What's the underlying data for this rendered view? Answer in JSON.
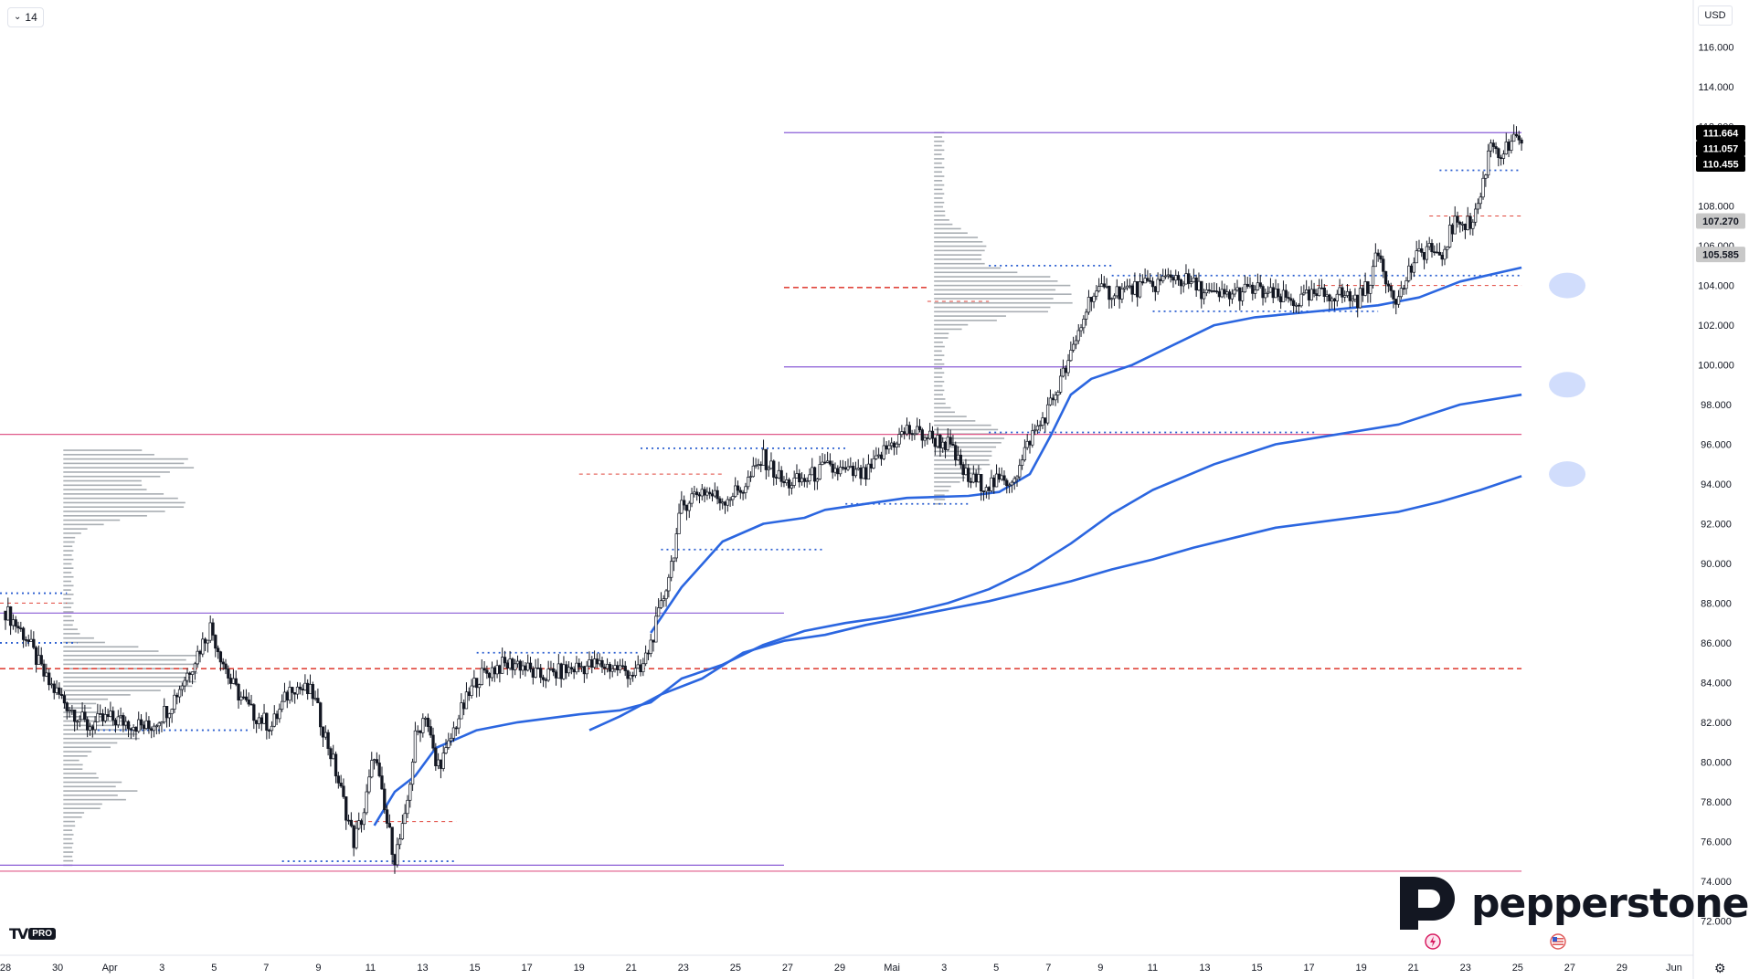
{
  "toolbar": {
    "interval_label": "14",
    "currency": "USD"
  },
  "branding": {
    "broker": "pepperstone",
    "platform_mark": "TV",
    "platform_badge": "PRO"
  },
  "colors": {
    "vwap": "#2b66e0",
    "hvn_line": "#e05a8a",
    "range_line": "#8a5cd6",
    "poc": "#e0463c",
    "value_area": "#2c5fd0",
    "profile": "#9aa0a6",
    "candle": "#131722",
    "price_tag": "#000000",
    "secondary_tag": "#c8c8c8"
  },
  "chart_data": {
    "type": "candlestick",
    "y_axis": {
      "min": 71,
      "max": 117,
      "ticks": [
        "116.000",
        "114.000",
        "112.000",
        "110.000",
        "108.000",
        "106.000",
        "104.000",
        "102.000",
        "100.000",
        "98.000",
        "96.000",
        "94.000",
        "92.000",
        "90.000",
        "88.000",
        "86.000",
        "84.000",
        "82.000",
        "80.000",
        "78.000",
        "76.000",
        "74.000",
        "72.000"
      ]
    },
    "x_axis": {
      "ticks": [
        "28",
        "30",
        "Apr",
        "3",
        "5",
        "7",
        "9",
        "11",
        "13",
        "15",
        "17",
        "19",
        "21",
        "23",
        "25",
        "27",
        "29",
        "Mai",
        "3",
        "5",
        "7",
        "9",
        "11",
        "13",
        "15",
        "17",
        "19",
        "21",
        "23",
        "25",
        "27",
        "29",
        "Jun"
      ]
    },
    "price_labels": [
      {
        "value": 111.664,
        "text": "111.664",
        "style": "dark"
      },
      {
        "value": 111.057,
        "text": "111.057",
        "style": "dark"
      },
      {
        "value": 110.455,
        "text": "110.455",
        "style": "dark"
      },
      {
        "value": 107.27,
        "text": "107.270",
        "style": "light"
      },
      {
        "value": 105.585,
        "text": "105.585",
        "style": "light"
      }
    ],
    "price_path": [
      [
        0,
        87.6
      ],
      [
        2,
        86.3
      ],
      [
        4,
        84.1
      ],
      [
        6,
        82.9
      ],
      [
        8,
        81.8
      ],
      [
        10,
        82.2
      ],
      [
        12,
        82.0
      ],
      [
        14,
        81.7
      ],
      [
        16,
        82.8
      ],
      [
        18,
        84.7
      ],
      [
        20,
        86.8
      ],
      [
        22,
        84.0
      ],
      [
        24,
        82.5
      ],
      [
        26,
        81.8
      ],
      [
        28,
        83.9
      ],
      [
        30,
        83.4
      ],
      [
        32,
        80.0
      ],
      [
        34,
        76.0
      ],
      [
        35,
        77.5
      ],
      [
        36,
        80.5
      ],
      [
        37,
        77.5
      ],
      [
        38,
        75.2
      ],
      [
        39,
        77.0
      ],
      [
        40,
        81.2
      ],
      [
        41,
        82.5
      ],
      [
        42,
        79.8
      ],
      [
        43,
        80.4
      ],
      [
        44,
        82.0
      ],
      [
        46,
        84.2
      ],
      [
        48,
        84.8
      ],
      [
        50,
        85.0
      ],
      [
        52,
        84.3
      ],
      [
        54,
        84.5
      ],
      [
        56,
        84.8
      ],
      [
        58,
        84.9
      ],
      [
        60,
        84.7
      ],
      [
        61,
        84.5
      ],
      [
        62,
        84.5
      ],
      [
        63,
        86.0
      ],
      [
        64,
        87.8
      ],
      [
        65,
        90.0
      ],
      [
        66,
        92.8
      ],
      [
        67,
        93.4
      ],
      [
        68,
        93.7
      ],
      [
        70,
        93.2
      ],
      [
        72,
        93.8
      ],
      [
        74,
        95.3
      ],
      [
        76,
        94.0
      ],
      [
        78,
        94.2
      ],
      [
        80,
        94.8
      ],
      [
        82,
        94.6
      ],
      [
        84,
        94.4
      ],
      [
        86,
        95.8
      ],
      [
        88,
        96.7
      ],
      [
        90,
        96.4
      ],
      [
        92,
        96.0
      ],
      [
        94,
        94.2
      ],
      [
        96,
        94.0
      ],
      [
        98,
        94.2
      ],
      [
        99,
        94.8
      ],
      [
        100,
        96.3
      ],
      [
        101,
        97.0
      ],
      [
        102,
        98.0
      ],
      [
        104,
        100.4
      ],
      [
        106,
        103.6
      ],
      [
        108,
        103.7
      ],
      [
        110,
        103.8
      ],
      [
        112,
        104.0
      ],
      [
        114,
        104.5
      ],
      [
        116,
        104.0
      ],
      [
        118,
        103.4
      ],
      [
        120,
        103.6
      ],
      [
        122,
        103.8
      ],
      [
        124,
        103.4
      ],
      [
        126,
        103.2
      ],
      [
        128,
        103.5
      ],
      [
        130,
        103.6
      ],
      [
        132,
        103.3
      ],
      [
        133,
        104.0
      ],
      [
        134,
        105.6
      ],
      [
        135,
        104.1
      ],
      [
        136,
        103.3
      ],
      [
        137,
        104.7
      ],
      [
        138,
        105.5
      ],
      [
        139,
        106.0
      ],
      [
        140,
        105.1
      ],
      [
        141,
        106.7
      ],
      [
        142,
        107.4
      ],
      [
        143,
        107.0
      ],
      [
        144,
        108.5
      ],
      [
        145,
        111.3
      ],
      [
        146,
        110.6
      ],
      [
        147,
        111.1
      ],
      [
        148,
        111.4
      ]
    ],
    "vwap_lines": [
      {
        "name": "",
        "points": [
          [
            63,
            86.5
          ],
          [
            66,
            88.8
          ],
          [
            70,
            91.1
          ],
          [
            74,
            92.0
          ],
          [
            78,
            92.3
          ],
          [
            80,
            92.7
          ],
          [
            84,
            93.0
          ],
          [
            88,
            93.3
          ],
          [
            94,
            93.4
          ],
          [
            97,
            93.6
          ],
          [
            100,
            94.5
          ],
          [
            102,
            96.4
          ],
          [
            104,
            98.5
          ],
          [
            106,
            99.3
          ],
          [
            110,
            100.0
          ],
          [
            114,
            101.0
          ],
          [
            118,
            102.0
          ],
          [
            122,
            102.4
          ],
          [
            126,
            102.6
          ],
          [
            130,
            102.8
          ],
          [
            134,
            103.0
          ],
          [
            138,
            103.4
          ],
          [
            142,
            104.2
          ],
          [
            148,
            104.9
          ]
        ]
      },
      {
        "name": "",
        "points": [
          [
            36,
            76.8
          ],
          [
            38,
            78.5
          ],
          [
            40,
            79.3
          ],
          [
            42,
            80.7
          ],
          [
            46,
            81.6
          ],
          [
            50,
            82.0
          ],
          [
            56,
            82.4
          ],
          [
            60,
            82.6
          ],
          [
            63,
            83.0
          ],
          [
            66,
            84.2
          ],
          [
            70,
            84.9
          ],
          [
            74,
            85.9
          ],
          [
            78,
            86.6
          ],
          [
            82,
            87.0
          ],
          [
            86,
            87.3
          ],
          [
            88,
            87.5
          ],
          [
            92,
            88.0
          ],
          [
            96,
            88.7
          ],
          [
            100,
            89.7
          ],
          [
            104,
            91.0
          ],
          [
            108,
            92.5
          ],
          [
            112,
            93.7
          ],
          [
            118,
            95.0
          ],
          [
            124,
            96.0
          ],
          [
            130,
            96.5
          ],
          [
            136,
            97.0
          ],
          [
            142,
            98.0
          ],
          [
            148,
            98.5
          ]
        ]
      },
      {
        "name": "",
        "points": [
          [
            57,
            81.6
          ],
          [
            60,
            82.3
          ],
          [
            64,
            83.4
          ],
          [
            68,
            84.2
          ],
          [
            72,
            85.5
          ],
          [
            76,
            86.1
          ],
          [
            80,
            86.4
          ],
          [
            84,
            86.9
          ],
          [
            88,
            87.3
          ],
          [
            92,
            87.7
          ],
          [
            96,
            88.1
          ],
          [
            100,
            88.6
          ],
          [
            104,
            89.1
          ],
          [
            108,
            89.7
          ],
          [
            112,
            90.2
          ],
          [
            116,
            90.8
          ],
          [
            120,
            91.3
          ],
          [
            124,
            91.8
          ],
          [
            130,
            92.2
          ],
          [
            136,
            92.6
          ],
          [
            140,
            93.1
          ],
          [
            144,
            93.7
          ],
          [
            148,
            94.4
          ]
        ]
      }
    ],
    "horizontal_lines": [
      {
        "kind": "hvn",
        "value": 96.5,
        "x_from": 0,
        "x_to": 148
      },
      {
        "kind": "hvn",
        "value": 74.5,
        "x_from": 0,
        "x_to": 148
      },
      {
        "kind": "range",
        "value": 111.7,
        "x_from": 76,
        "x_to": 148
      },
      {
        "kind": "range",
        "value": 99.9,
        "x_from": 76,
        "x_to": 148
      },
      {
        "kind": "range",
        "value": 87.5,
        "x_from": 0,
        "x_to": 76
      },
      {
        "kind": "range",
        "value": 74.8,
        "x_from": 0,
        "x_to": 76
      },
      {
        "kind": "poc",
        "value": 84.7,
        "x_from": 0,
        "x_to": 148
      },
      {
        "kind": "poc",
        "value": 103.9,
        "x_from": 76,
        "x_to": 90
      },
      {
        "kind": "poc_dashed",
        "value": 103.2,
        "x_from": 90,
        "x_to": 96
      },
      {
        "kind": "poc_dashed",
        "value": 104.0,
        "x_from": 128,
        "x_to": 148
      },
      {
        "kind": "poc_dashed",
        "value": 107.5,
        "x_from": 139,
        "x_to": 148
      },
      {
        "kind": "poc_dashed",
        "value": 94.5,
        "x_from": 56,
        "x_to": 70
      },
      {
        "kind": "poc_dashed",
        "value": 77.0,
        "x_from": 34,
        "x_to": 44
      },
      {
        "kind": "poc_dashed",
        "value": 88.0,
        "x_from": 0,
        "x_to": 6
      },
      {
        "kind": "va",
        "value": 88.5,
        "x_from": 0,
        "x_to": 6
      },
      {
        "kind": "va",
        "value": 86.0,
        "x_from": 0,
        "x_to": 7
      },
      {
        "kind": "va",
        "value": 81.6,
        "x_from": 9,
        "x_to": 24
      },
      {
        "kind": "va",
        "value": 75.0,
        "x_from": 27,
        "x_to": 44
      },
      {
        "kind": "va",
        "value": 85.5,
        "x_from": 46,
        "x_to": 62
      },
      {
        "kind": "va",
        "value": 95.8,
        "x_from": 62,
        "x_to": 82
      },
      {
        "kind": "va",
        "value": 93.0,
        "x_from": 82,
        "x_to": 94
      },
      {
        "kind": "va",
        "value": 96.6,
        "x_from": 96,
        "x_to": 128
      },
      {
        "kind": "va",
        "value": 105.0,
        "x_from": 96,
        "x_to": 108
      },
      {
        "kind": "va",
        "value": 104.5,
        "x_from": 108,
        "x_to": 148
      },
      {
        "kind": "va",
        "value": 102.7,
        "x_from": 112,
        "x_to": 134
      },
      {
        "kind": "va",
        "value": 109.8,
        "x_from": 140,
        "x_to": 148
      },
      {
        "kind": "va",
        "value": 90.7,
        "x_from": 64,
        "x_to": 80
      }
    ],
    "volume_profiles": [
      {
        "anchor_x": 11,
        "y_from": 74.8,
        "y_to": 95.9,
        "peaks": [
          [
            95.0,
            1.0
          ],
          [
            93.0,
            0.95
          ],
          [
            85.0,
            1.05
          ],
          [
            84.2,
            1.0
          ],
          [
            81.5,
            0.6
          ],
          [
            78.5,
            0.5
          ]
        ]
      },
      {
        "anchor_x": 96,
        "y_from": 93.0,
        "y_to": 111.8,
        "peaks": [
          [
            104.0,
            1.0
          ],
          [
            103.0,
            0.8
          ],
          [
            96.5,
            0.5
          ],
          [
            95.0,
            0.35
          ],
          [
            106.0,
            0.35
          ]
        ]
      }
    ],
    "markers": [
      104.0,
      99.0,
      94.5
    ]
  }
}
